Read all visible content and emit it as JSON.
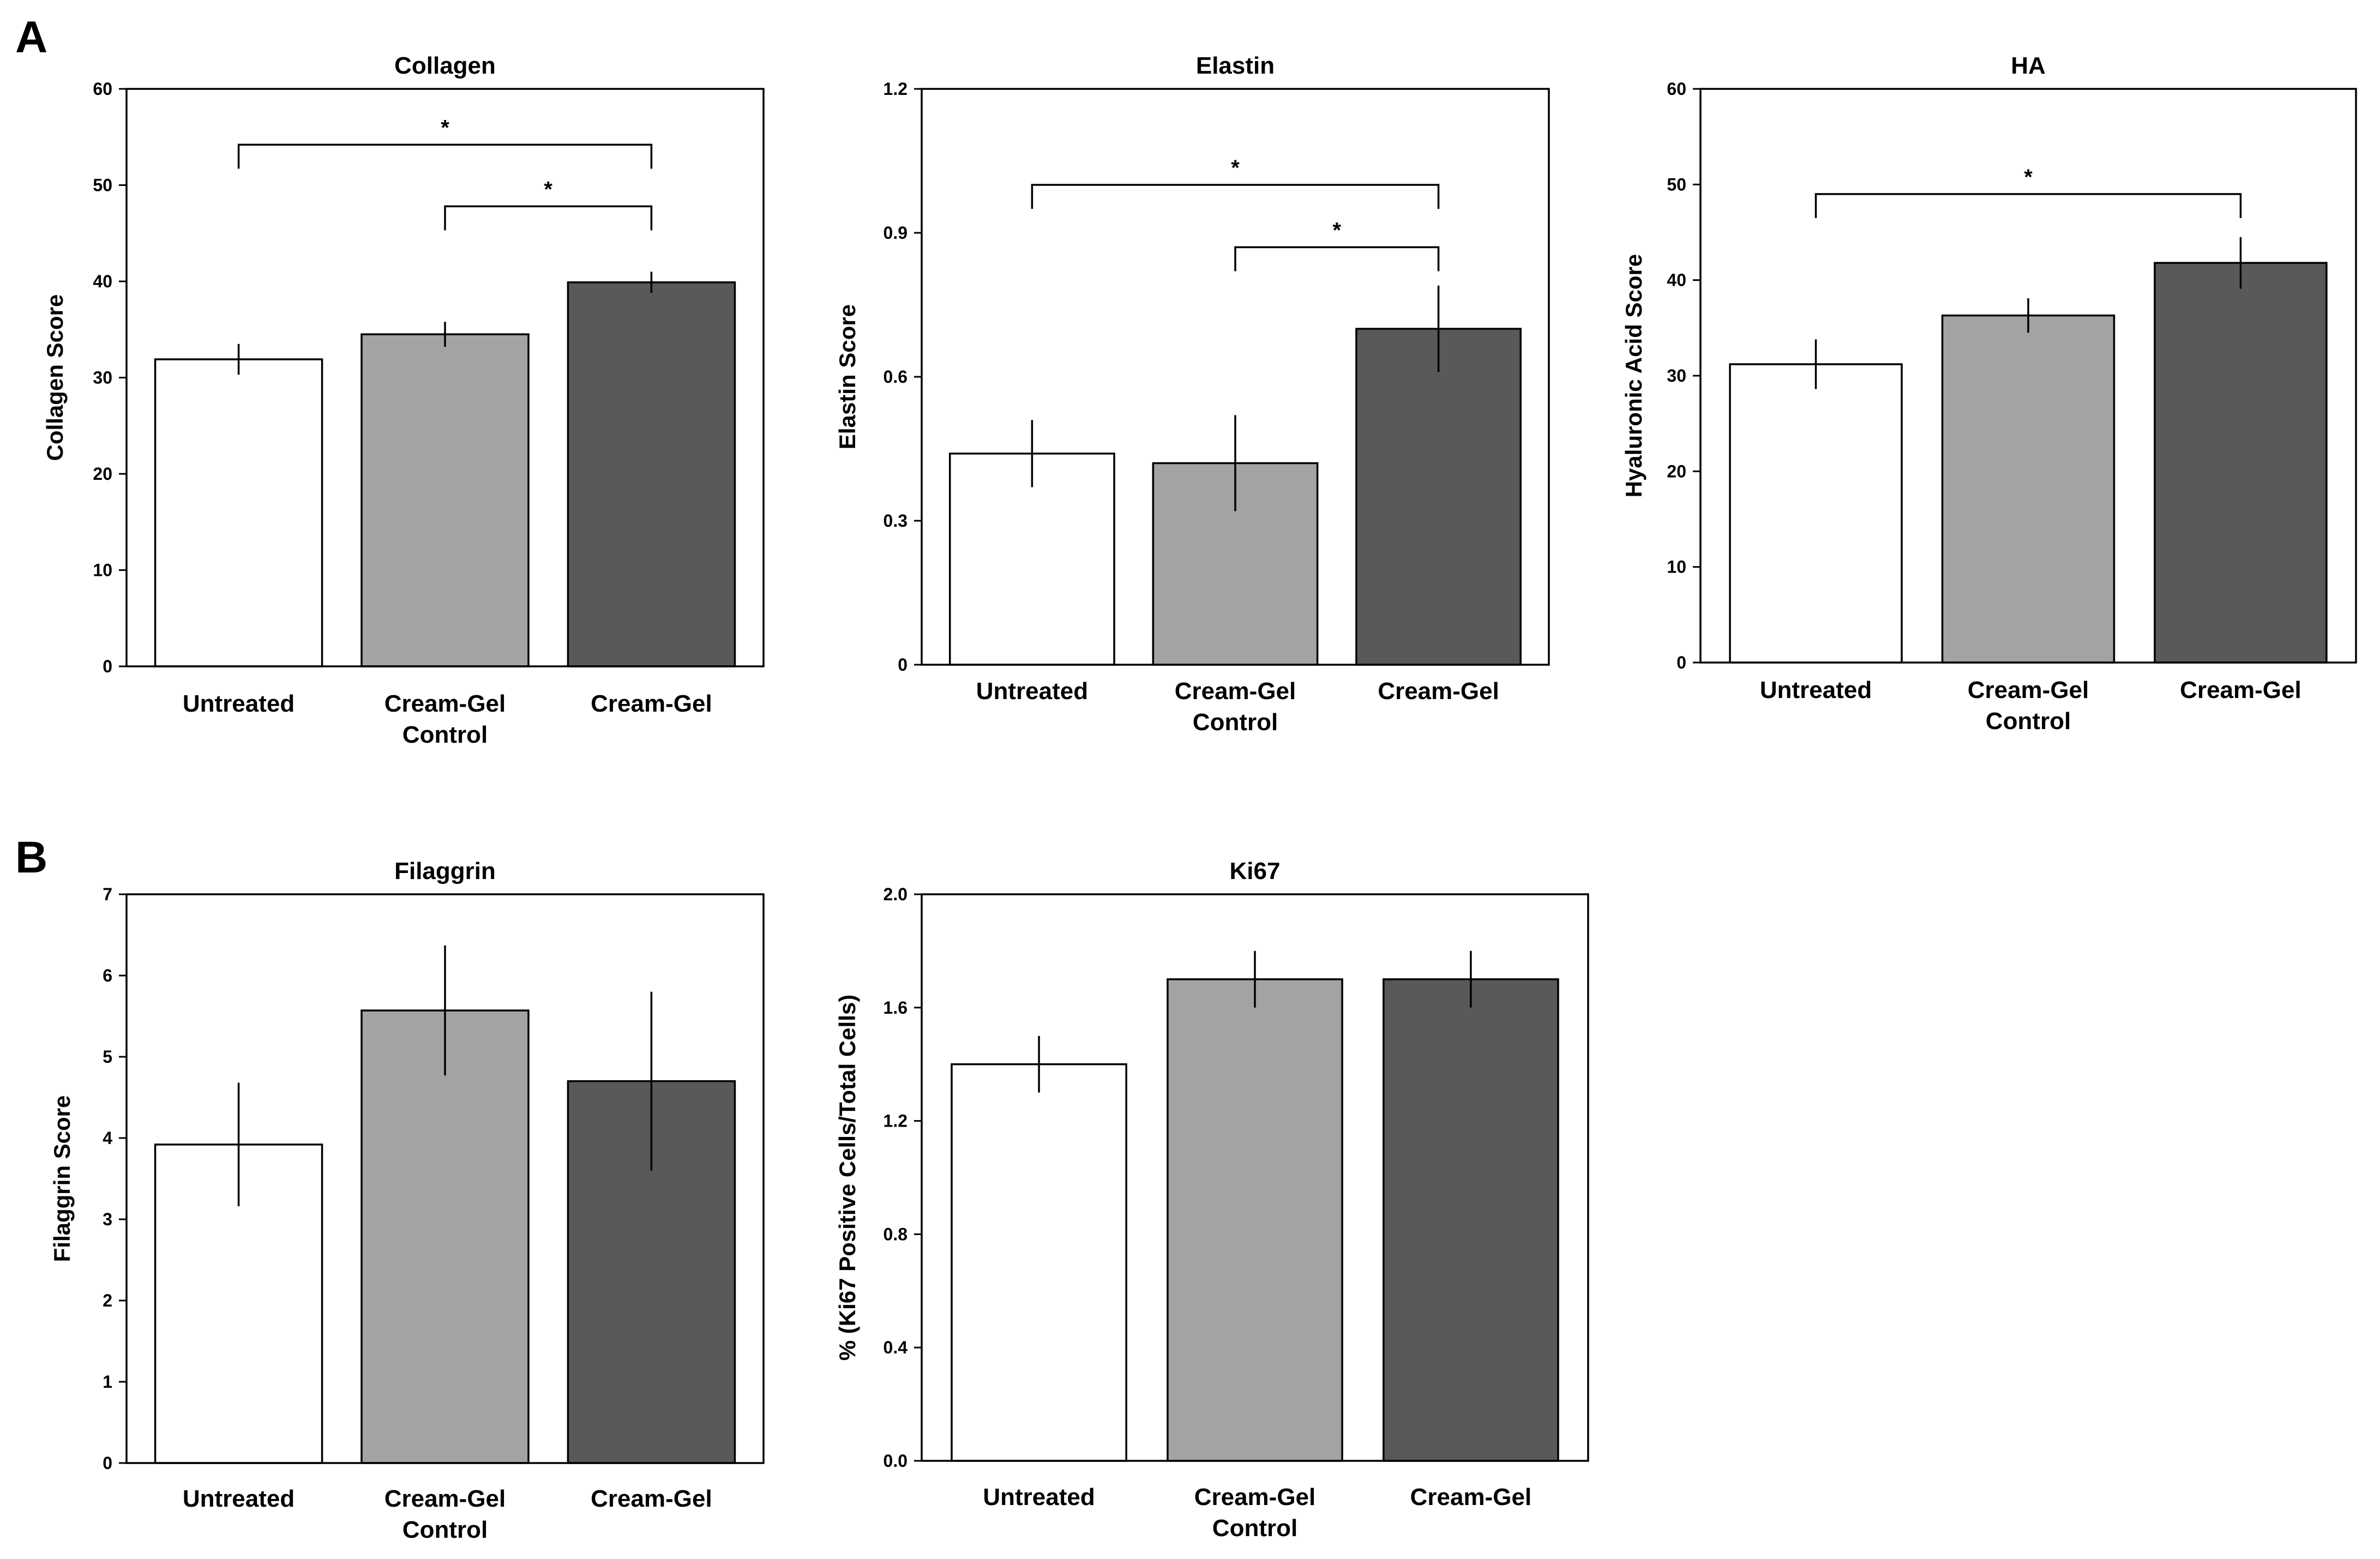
{
  "colors": {
    "Untreated": "#ffffff",
    "Cream-Gel Control": "#a3a3a3",
    "Cream-Gel": "#595959",
    "frame": "#000000"
  },
  "chart_data": [
    {
      "panel": "A",
      "type": "bar",
      "title": "Collagen",
      "ylabel": "Collagen Score",
      "ylim": [
        0,
        60
      ],
      "yticks": [
        0,
        10,
        20,
        30,
        40,
        50,
        60
      ],
      "ytick_labels": [
        "0",
        "10",
        "20",
        "30",
        "40",
        "50",
        "60"
      ],
      "categories": [
        "Untreated",
        "Cream-Gel|Control",
        "Cream-Gel"
      ],
      "values": [
        31.9,
        34.5,
        39.9
      ],
      "errors": [
        1.6,
        1.3,
        1.1
      ],
      "significance": [
        {
          "from": 0,
          "to": 2,
          "y": 54.2,
          "label": "*"
        },
        {
          "from": 1,
          "to": 2,
          "y": 47.8,
          "label": "*"
        }
      ]
    },
    {
      "panel": "",
      "type": "bar",
      "title": "Elastin",
      "ylabel": "Elastin Score",
      "ylim": [
        0,
        1.2
      ],
      "yticks": [
        0,
        0.3,
        0.6,
        0.9,
        1.2
      ],
      "ytick_labels": [
        "0",
        "0.3",
        "0.6",
        "0.9",
        "1.2"
      ],
      "categories": [
        "Untreated",
        "Cream-Gel|Control",
        "Cream-Gel"
      ],
      "values": [
        0.44,
        0.42,
        0.7
      ],
      "errors": [
        0.07,
        0.1,
        0.09
      ],
      "significance": [
        {
          "from": 0,
          "to": 2,
          "y": 1.0,
          "label": "*"
        },
        {
          "from": 1,
          "to": 2,
          "y": 0.87,
          "label": "*"
        }
      ]
    },
    {
      "panel": "",
      "type": "bar",
      "title": "HA",
      "ylabel": "Hyaluronic Acid Score",
      "ylim": [
        0,
        60
      ],
      "yticks": [
        0,
        10,
        20,
        30,
        40,
        50,
        60
      ],
      "ytick_labels": [
        "0",
        "10",
        "20",
        "30",
        "40",
        "50",
        "60"
      ],
      "categories": [
        "Untreated",
        "Cream-Gel|Control",
        "Cream-Gel"
      ],
      "values": [
        31.2,
        36.3,
        41.8
      ],
      "errors": [
        2.6,
        1.8,
        2.7
      ],
      "significance": [
        {
          "from": 0,
          "to": 2,
          "y": 49.0,
          "label": "*"
        }
      ]
    },
    {
      "panel": "B",
      "type": "bar",
      "title": "Filaggrin",
      "ylabel": "Filaggrin Score",
      "ylim": [
        0,
        7
      ],
      "yticks": [
        0,
        1,
        2,
        3,
        4,
        5,
        6,
        7
      ],
      "ytick_labels": [
        "0",
        "1",
        "2",
        "3",
        "4",
        "5",
        "6",
        "7"
      ],
      "categories": [
        "Untreated",
        "Cream-Gel|Control",
        "Cream-Gel"
      ],
      "values": [
        3.92,
        5.57,
        4.7
      ],
      "errors": [
        0.76,
        0.8,
        1.1
      ],
      "significance": []
    },
    {
      "panel": "",
      "type": "bar",
      "title": "Ki67",
      "ylabel": "% (Ki67 Positive Cells/Total Cells)",
      "ylim": [
        0,
        2.0
      ],
      "yticks": [
        0,
        0.4,
        0.8,
        1.2,
        1.6,
        2.0
      ],
      "ytick_labels": [
        "0.0",
        "0.4",
        "0.8",
        "1.2",
        "1.6",
        "2.0"
      ],
      "categories": [
        "Untreated",
        "Cream-Gel|Control",
        "Cream-Gel"
      ],
      "values": [
        1.4,
        1.7,
        1.7
      ],
      "errors": [
        0.1,
        0.1,
        0.1
      ],
      "significance": []
    }
  ]
}
